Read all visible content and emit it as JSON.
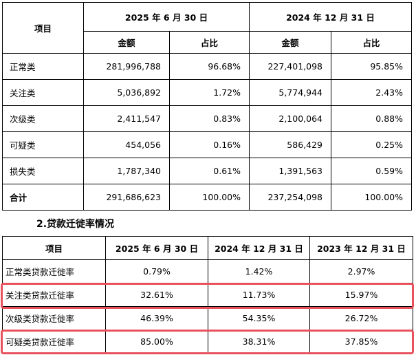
{
  "table1": {
    "item_header": "项目",
    "period_headers": [
      "2025 年 6 月 30 日",
      "2024 年 12 月 31 日"
    ],
    "sub_headers": [
      "金额",
      "占比",
      "金额",
      "占比"
    ],
    "rows": [
      {
        "label": "正常类",
        "amt1": "281,996,788",
        "pct1": "96.68%",
        "amt2": "227,401,098",
        "pct2": "95.85%"
      },
      {
        "label": "关注类",
        "amt1": "5,036,892",
        "pct1": "1.72%",
        "amt2": "5,774,944",
        "pct2": "2.43%"
      },
      {
        "label": "次级类",
        "amt1": "2,411,547",
        "pct1": "0.83%",
        "amt2": "2,100,064",
        "pct2": "0.88%"
      },
      {
        "label": "可疑类",
        "amt1": "454,056",
        "pct1": "0.16%",
        "amt2": "586,429",
        "pct2": "0.25%"
      },
      {
        "label": "损失类",
        "amt1": "1,787,340",
        "pct1": "0.61%",
        "amt2": "1,391,563",
        "pct2": "0.59%"
      },
      {
        "label": "合计",
        "amt1": "291,686,623",
        "pct1": "100.00%",
        "amt2": "237,254,098",
        "pct2": "100.00%"
      }
    ]
  },
  "section_title": "2.贷款迁徙率情况",
  "table2": {
    "headers": [
      "项目",
      "2025 年 6 月 30 日",
      "2024 年 12 月 31 日",
      "2023 年 12 月 31 日"
    ],
    "rows": [
      {
        "label": "正常类贷款迁徙率",
        "v1": "0.79%",
        "v2": "1.42%",
        "v3": "2.97%"
      },
      {
        "label": "关注类贷款迁徙率",
        "v1": "32.61%",
        "v2": "11.73%",
        "v3": "15.97%"
      },
      {
        "label": "次级类贷款迁徙率",
        "v1": "46.39%",
        "v2": "54.35%",
        "v3": "26.72%"
      },
      {
        "label": "可疑类贷款迁徙率",
        "v1": "85.00%",
        "v2": "38.31%",
        "v3": "37.85%"
      }
    ]
  },
  "colors": {
    "highlight": "#e8525c"
  }
}
